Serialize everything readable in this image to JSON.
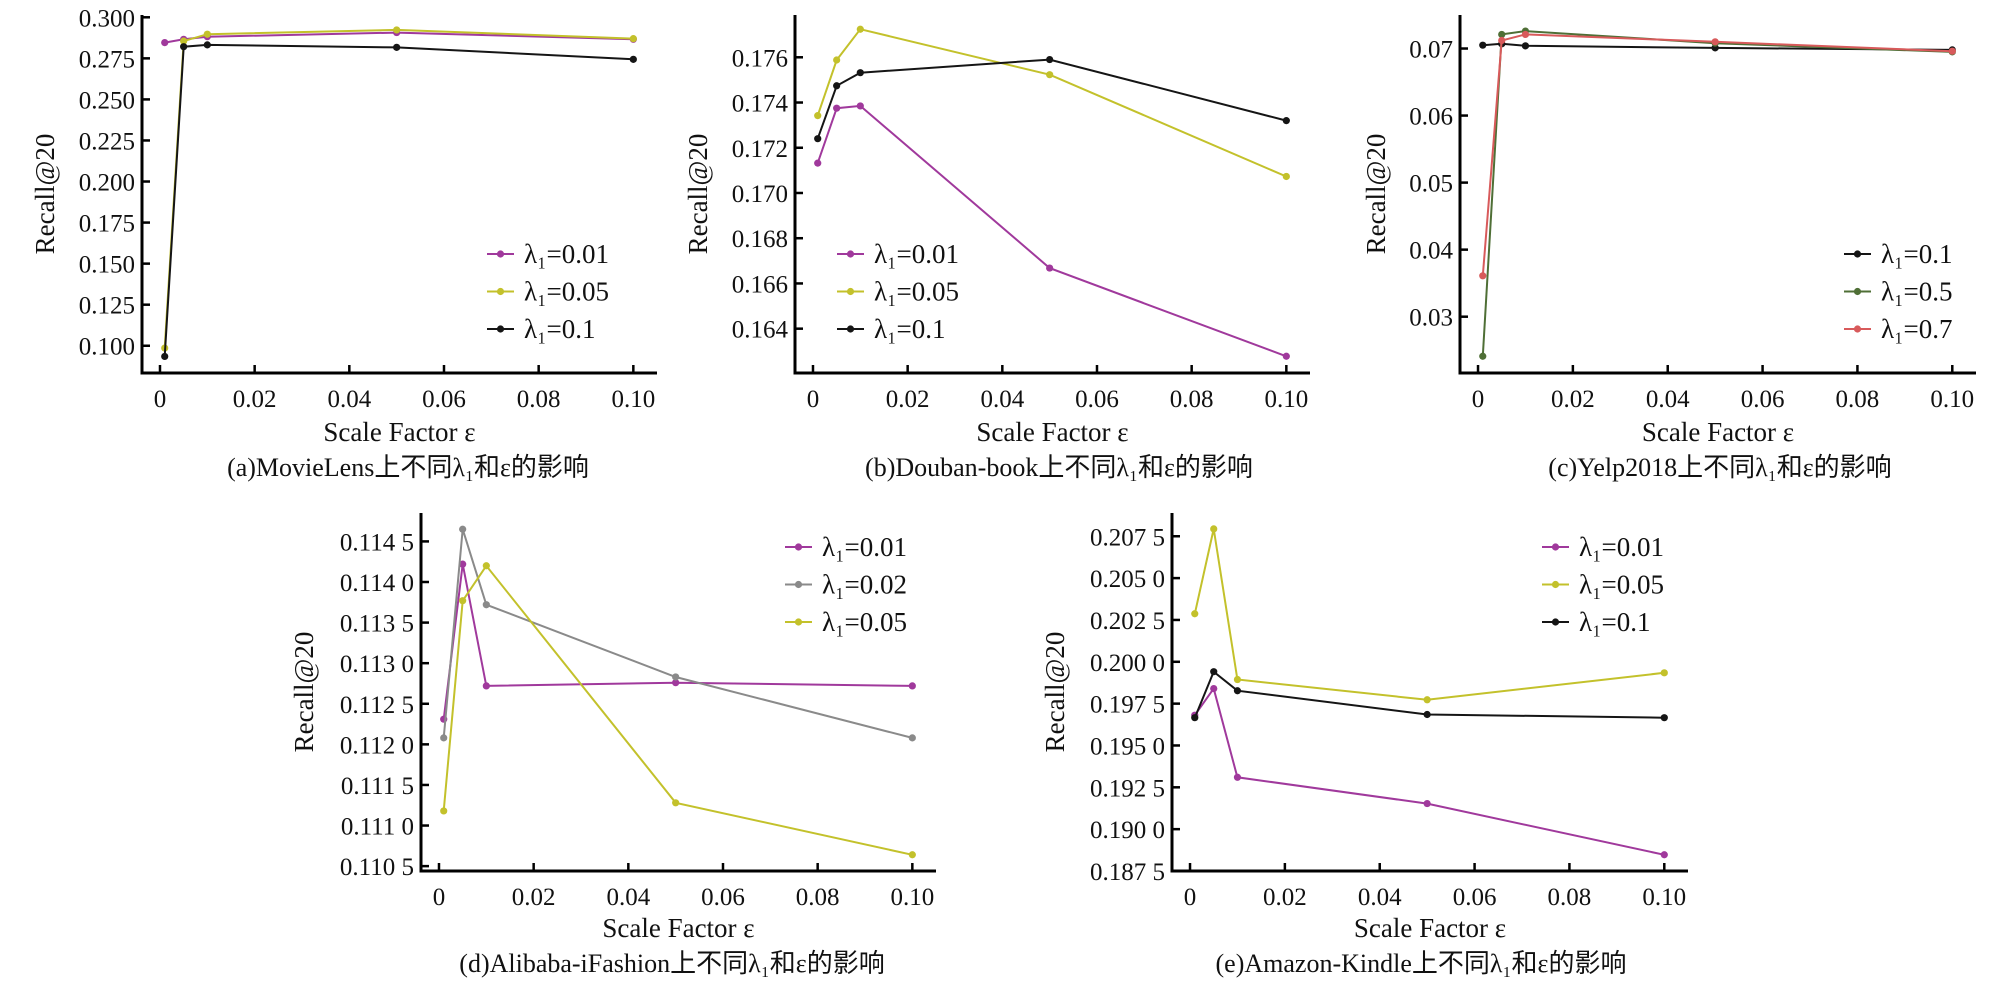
{
  "colors": {
    "purple": "#a0399c",
    "yellow": "#c3c12b",
    "black": "#151515",
    "gray": "#8a8a8a",
    "green": "#4f6f36",
    "red": "#d85a5b"
  },
  "chart_data": [
    {
      "type": "line",
      "caption": "(a)MovieLens上不同λ₁和ε的影响",
      "xlabel": "Scale Factor ε",
      "ylabel": "Recall@20",
      "x": [
        0.001,
        0.005,
        0.01,
        0.05,
        0.1
      ],
      "xlim": [
        -0.0038,
        0.105
      ],
      "ylim": [
        0.0834,
        0.3014
      ],
      "xticks": [
        0,
        0.02,
        0.04,
        0.06,
        0.08,
        0.1
      ],
      "xtick_labels": [
        "0",
        "0.02",
        "0.04",
        "0.06",
        "0.08",
        "0.10"
      ],
      "yticks": [
        0.1,
        0.125,
        0.15,
        0.175,
        0.2,
        0.225,
        0.25,
        0.275,
        0.3
      ],
      "ytick_labels": [
        "0.100",
        "0.125",
        "0.150",
        "0.175",
        "0.200",
        "0.225",
        "0.250",
        "0.275",
        "0.300"
      ],
      "legend_position": "lower-right",
      "series": [
        {
          "name": "λ₁=0.01",
          "color": "#a0399c",
          "values": [
            0.2846,
            0.2866,
            0.2882,
            0.2907,
            0.2866
          ]
        },
        {
          "name": "λ₁=0.05",
          "color": "#c3c12b",
          "values": [
            0.0986,
            0.2855,
            0.2897,
            0.2923,
            0.287
          ]
        },
        {
          "name": "λ₁=0.1",
          "color": "#151515",
          "values": [
            0.0935,
            0.2821,
            0.2832,
            0.2817,
            0.2744
          ]
        }
      ]
    },
    {
      "type": "line",
      "caption": "(b)Douban-book上不同λ₁和ε的影响",
      "xlabel": "Scale Factor ε",
      "ylabel": "Recall@20",
      "x": [
        0.001,
        0.005,
        0.01,
        0.05,
        0.1
      ],
      "xlim": [
        -0.0038,
        0.105
      ],
      "ylim": [
        0.16204,
        0.17787
      ],
      "xticks": [
        0,
        0.02,
        0.04,
        0.06,
        0.08,
        0.1
      ],
      "xtick_labels": [
        "0",
        "0.02",
        "0.04",
        "0.06",
        "0.08",
        "0.10"
      ],
      "yticks": [
        0.164,
        0.166,
        0.168,
        0.17,
        0.172,
        0.174,
        0.176
      ],
      "ytick_labels": [
        "0.164",
        "0.166",
        "0.168",
        "0.170",
        "0.172",
        "0.174",
        "0.176"
      ],
      "legend_position": "lower-left",
      "series": [
        {
          "name": "λ₁=0.01",
          "color": "#a0399c",
          "values": [
            0.17132,
            0.17375,
            0.17385,
            0.16668,
            0.16278
          ]
        },
        {
          "name": "λ₁=0.05",
          "color": "#c3c12b",
          "values": [
            0.17342,
            0.17588,
            0.17724,
            0.17523,
            0.17073
          ]
        },
        {
          "name": "λ₁=0.1",
          "color": "#151515",
          "values": [
            0.1724,
            0.17474,
            0.17532,
            0.1759,
            0.1732
          ]
        }
      ]
    },
    {
      "type": "line",
      "caption": "(c)Yelp2018上不同λ₁和ε的影响",
      "xlabel": "Scale Factor ε",
      "ylabel": "Recall@20",
      "x": [
        0.001,
        0.005,
        0.01,
        0.05,
        0.1
      ],
      "xlim": [
        -0.0038,
        0.105
      ],
      "ylim": [
        0.0216,
        0.075
      ],
      "xticks": [
        0,
        0.02,
        0.04,
        0.06,
        0.08,
        0.1
      ],
      "xtick_labels": [
        "0",
        "0.02",
        "0.04",
        "0.06",
        "0.08",
        "0.10"
      ],
      "yticks": [
        0.03,
        0.04,
        0.05,
        0.06,
        0.07
      ],
      "ytick_labels": [
        "0.03",
        "0.04",
        "0.05",
        "0.06",
        "0.07"
      ],
      "legend_position": "lower-right",
      "series": [
        {
          "name": "λ₁=0.1",
          "color": "#151515",
          "values": [
            0.0705,
            0.0707,
            0.0704,
            0.0701,
            0.0698
          ]
        },
        {
          "name": "λ₁=0.5",
          "color": "#4f6f36",
          "values": [
            0.0241,
            0.0721,
            0.0726,
            0.0708,
            0.0695
          ]
        },
        {
          "name": "λ₁=0.7",
          "color": "#d85a5b",
          "values": [
            0.0361,
            0.0712,
            0.0721,
            0.071,
            0.0696
          ]
        }
      ]
    },
    {
      "type": "line",
      "caption": "(d)Alibaba-iFashion上不同λ₁和ε的影响",
      "xlabel": "Scale Factor ε",
      "ylabel": "Recall@20",
      "x": [
        0.001,
        0.005,
        0.01,
        0.05,
        0.1
      ],
      "xlim": [
        -0.0038,
        0.105
      ],
      "ylim": [
        0.11044,
        0.11485
      ],
      "xticks": [
        0,
        0.02,
        0.04,
        0.06,
        0.08,
        0.1
      ],
      "xtick_labels": [
        "0",
        "0.02",
        "0.04",
        "0.06",
        "0.08",
        "0.10"
      ],
      "yticks": [
        0.1105,
        0.111,
        0.1115,
        0.112,
        0.1125,
        0.113,
        0.1135,
        0.114,
        0.1145
      ],
      "ytick_labels": [
        "0.110 5",
        "0.111 0",
        "0.111 5",
        "0.112 0",
        "0.112 5",
        "0.113 0",
        "0.113 5",
        "0.114 0",
        "0.114 5"
      ],
      "legend_position": "upper-right",
      "series": [
        {
          "name": "λ₁=0.01",
          "color": "#a0399c",
          "values": [
            0.11231,
            0.11422,
            0.11272,
            0.11276,
            0.11272
          ]
        },
        {
          "name": "λ₁=0.02",
          "color": "#8a8a8a",
          "values": [
            0.11208,
            0.11465,
            0.11372,
            0.11283,
            0.11208
          ]
        },
        {
          "name": "λ₁=0.05",
          "color": "#c3c12b",
          "values": [
            0.11118,
            0.11377,
            0.1142,
            0.11128,
            0.11064
          ]
        }
      ]
    },
    {
      "type": "line",
      "caption": "(e)Amazon-Kindle上不同λ₁和ε的影响",
      "xlabel": "Scale Factor ε",
      "ylabel": "Recall@20",
      "x": [
        0.001,
        0.005,
        0.01,
        0.05,
        0.1
      ],
      "xlim": [
        -0.0038,
        0.105
      ],
      "ylim": [
        0.1875,
        0.20889
      ],
      "xticks": [
        0,
        0.02,
        0.04,
        0.06,
        0.08,
        0.1
      ],
      "xtick_labels": [
        "0",
        "0.02",
        "0.04",
        "0.06",
        "0.08",
        "0.10"
      ],
      "yticks": [
        0.1875,
        0.19,
        0.1925,
        0.195,
        0.1975,
        0.2,
        0.2025,
        0.205,
        0.2075
      ],
      "ytick_labels": [
        "0.187 5",
        "0.190 0",
        "0.192 5",
        "0.195 0",
        "0.197 5",
        "0.200 0",
        "0.202 5",
        "0.205 0",
        "0.207 5"
      ],
      "legend_position": "upper-right",
      "series": [
        {
          "name": "λ₁=0.01",
          "color": "#a0399c",
          "values": [
            0.19681,
            0.1984,
            0.1931,
            0.19153,
            0.18847
          ]
        },
        {
          "name": "λ₁=0.05",
          "color": "#c3c12b",
          "values": [
            0.20287,
            0.20794,
            0.19894,
            0.19773,
            0.19934
          ]
        },
        {
          "name": "λ₁=0.1",
          "color": "#151515",
          "values": [
            0.19666,
            0.19941,
            0.19827,
            0.19685,
            0.19666
          ]
        }
      ]
    }
  ]
}
